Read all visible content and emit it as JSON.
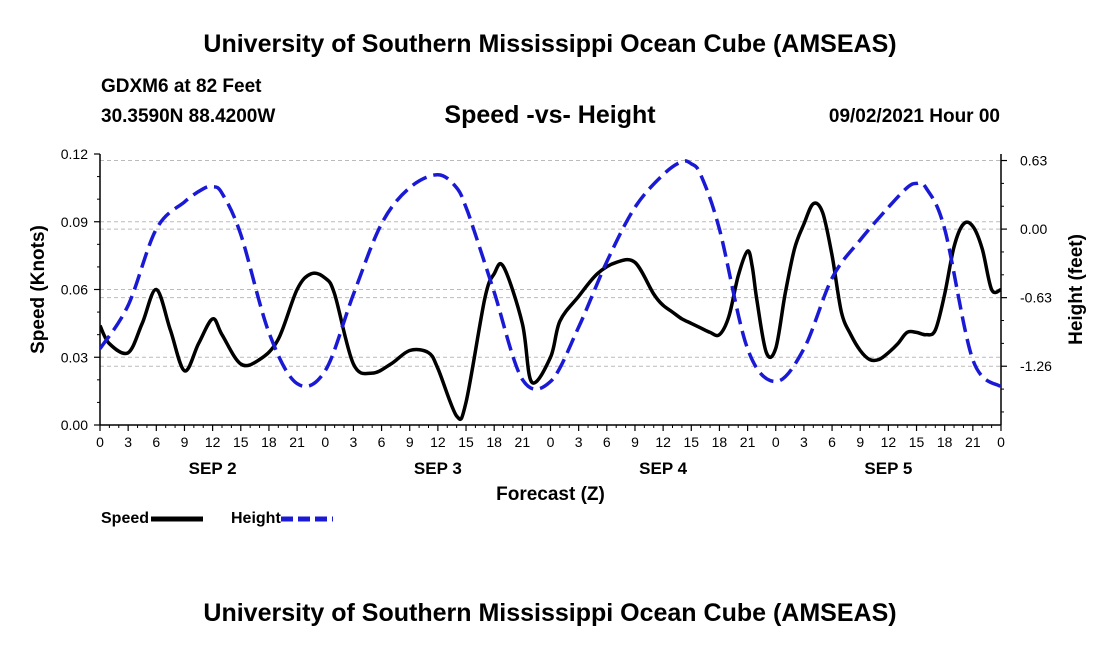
{
  "header": {
    "title": "University of Southern Mississippi Ocean Cube (AMSEAS)",
    "station": "GDXM6 at 82 Feet",
    "coordinates": "30.3590N  88.4200W",
    "chart_title": "Speed -vs- Height",
    "datetime": "09/02/2021 Hour 00"
  },
  "footer": {
    "title": "University of Southern Mississippi Ocean Cube (AMSEAS)"
  },
  "legend": {
    "speed_label": "Speed",
    "height_label": "Height"
  },
  "colors": {
    "speed": "#000000",
    "height": "#1a1ad6",
    "grid": "#bbbbbb"
  },
  "chart_data": {
    "type": "line",
    "title": "Speed -vs- Height",
    "xlabel": "Forecast (Z)",
    "ylabel": "Speed (Knots)",
    "y2label": "Height (feet)",
    "xlim": [
      0,
      96
    ],
    "ylim": [
      0,
      0.12
    ],
    "y2lim": [
      -1.8,
      0.69
    ],
    "yticks": [
      0.0,
      0.03,
      0.06,
      0.09,
      0.12
    ],
    "ytick_labels": [
      "0.00",
      "0.03",
      "0.06",
      "0.09",
      "0.12"
    ],
    "y2ticks": [
      0.63,
      0.0,
      -0.63,
      -1.26
    ],
    "y2tick_labels": [
      "0.63",
      "0.00",
      "-0.63",
      "-1.26"
    ],
    "xticks": [
      0,
      3,
      6,
      9,
      12,
      15,
      18,
      21,
      24,
      27,
      30,
      33,
      36,
      39,
      42,
      45,
      48,
      51,
      54,
      57,
      60,
      63,
      66,
      69,
      72,
      75,
      78,
      81,
      84,
      87,
      90,
      93,
      96
    ],
    "xtick_labels": [
      "0",
      "3",
      "6",
      "9",
      "12",
      "15",
      "18",
      "21",
      "0",
      "3",
      "6",
      "9",
      "12",
      "15",
      "18",
      "21",
      "0",
      "3",
      "6",
      "9",
      "12",
      "15",
      "18",
      "21",
      "0",
      "3",
      "6",
      "9",
      "12",
      "15",
      "18",
      "21",
      "0"
    ],
    "day_labels": [
      {
        "x": 12,
        "label": "SEP 2"
      },
      {
        "x": 36,
        "label": "SEP 3"
      },
      {
        "x": 60,
        "label": "SEP 4"
      },
      {
        "x": 84,
        "label": "SEP 5"
      }
    ],
    "series": [
      {
        "name": "Speed",
        "axis": "left",
        "style": "solid",
        "x": [
          0,
          1,
          3,
          4.5,
          6,
          7.5,
          9,
          10.5,
          12,
          13,
          15,
          17,
          19,
          21,
          22.5,
          24,
          25,
          27,
          29,
          31,
          33,
          35,
          36,
          38,
          39,
          41,
          42,
          43,
          45,
          46,
          48,
          49,
          51,
          53,
          55,
          57,
          59,
          60,
          61,
          62,
          63,
          64,
          65,
          66,
          67,
          68,
          69,
          69.5,
          70,
          71,
          72,
          73,
          74,
          75,
          76,
          77,
          78,
          79,
          80,
          81,
          82,
          83,
          84,
          85,
          86,
          87,
          88,
          89,
          90,
          91,
          92,
          93,
          94,
          95,
          96
        ],
        "y": [
          0.044,
          0.036,
          0.032,
          0.045,
          0.06,
          0.042,
          0.024,
          0.036,
          0.047,
          0.04,
          0.027,
          0.029,
          0.038,
          0.06,
          0.067,
          0.065,
          0.058,
          0.027,
          0.023,
          0.027,
          0.033,
          0.032,
          0.025,
          0.004,
          0.01,
          0.056,
          0.067,
          0.07,
          0.045,
          0.019,
          0.03,
          0.046,
          0.057,
          0.067,
          0.072,
          0.072,
          0.058,
          0.053,
          0.05,
          0.047,
          0.045,
          0.043,
          0.041,
          0.04,
          0.048,
          0.066,
          0.077,
          0.07,
          0.055,
          0.032,
          0.034,
          0.058,
          0.078,
          0.089,
          0.098,
          0.094,
          0.075,
          0.05,
          0.04,
          0.033,
          0.029,
          0.029,
          0.032,
          0.036,
          0.041,
          0.041,
          0.04,
          0.042,
          0.058,
          0.079,
          0.089,
          0.088,
          0.078,
          0.06,
          0.06
        ]
      },
      {
        "name": "Height",
        "axis": "right",
        "style": "dashed",
        "x": [
          0,
          3,
          6,
          9,
          11,
          12,
          13,
          15,
          18,
          21,
          24,
          27,
          30,
          33,
          36,
          38,
          39,
          40,
          42,
          45,
          48,
          51,
          54,
          57,
          60,
          62,
          63,
          64,
          66,
          69,
          72,
          75,
          78,
          81,
          84,
          86,
          87,
          88,
          90,
          93,
          96
        ],
        "y": [
          -1.1,
          -0.7,
          0.0,
          0.25,
          0.37,
          0.39,
          0.33,
          -0.05,
          -0.95,
          -1.42,
          -1.3,
          -0.6,
          0.05,
          0.38,
          0.5,
          0.38,
          0.2,
          -0.05,
          -0.58,
          -1.38,
          -1.4,
          -0.9,
          -0.3,
          0.2,
          0.5,
          0.62,
          0.6,
          0.5,
          0.0,
          -1.1,
          -1.4,
          -1.1,
          -0.45,
          -0.1,
          0.2,
          0.38,
          0.42,
          0.38,
          0.0,
          -1.2,
          -1.45
        ]
      }
    ]
  }
}
